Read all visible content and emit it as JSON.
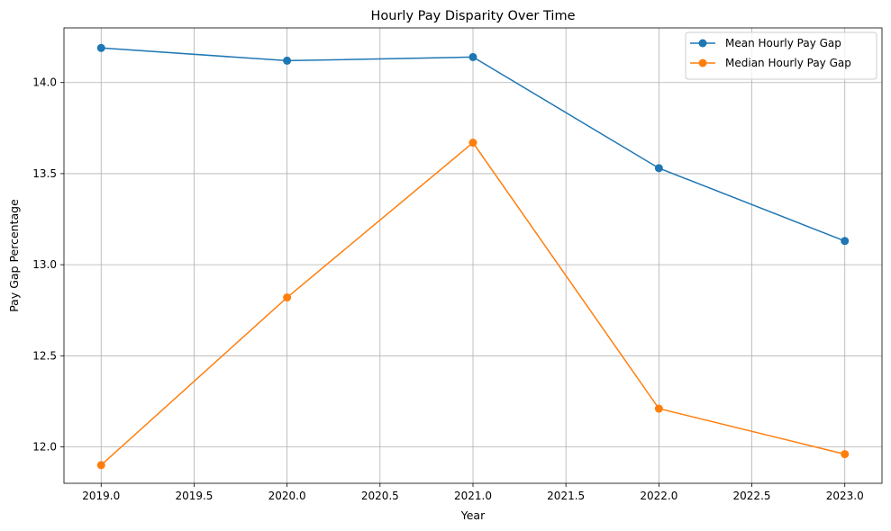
{
  "chart_data": {
    "type": "line",
    "title": "Hourly Pay Disparity Over Time",
    "xlabel": "Year",
    "ylabel": "Pay Gap Percentage",
    "x": [
      2019,
      2020,
      2021,
      2022,
      2023
    ],
    "xlim": [
      2018.8,
      2023.2
    ],
    "ylim": [
      11.8,
      14.3
    ],
    "xticks": [
      2019.0,
      2019.5,
      2020.0,
      2020.5,
      2021.0,
      2021.5,
      2022.0,
      2022.5,
      2023.0
    ],
    "xtick_labels": [
      "2019.0",
      "2019.5",
      "2020.0",
      "2020.5",
      "2021.0",
      "2021.5",
      "2022.0",
      "2022.5",
      "2023.0"
    ],
    "yticks": [
      12.0,
      12.5,
      13.0,
      13.5,
      14.0
    ],
    "ytick_labels": [
      "12.0",
      "12.5",
      "13.0",
      "13.5",
      "14.0"
    ],
    "grid": true,
    "legend_position": "top-right",
    "series": [
      {
        "name": "Mean Hourly Pay Gap",
        "color": "#1f77b4",
        "marker": "circle",
        "values": [
          14.19,
          14.12,
          14.14,
          13.53,
          13.13
        ]
      },
      {
        "name": "Median Hourly Pay Gap",
        "color": "#ff7f0e",
        "marker": "circle",
        "values": [
          11.9,
          12.82,
          13.67,
          12.21,
          11.96
        ]
      }
    ]
  }
}
